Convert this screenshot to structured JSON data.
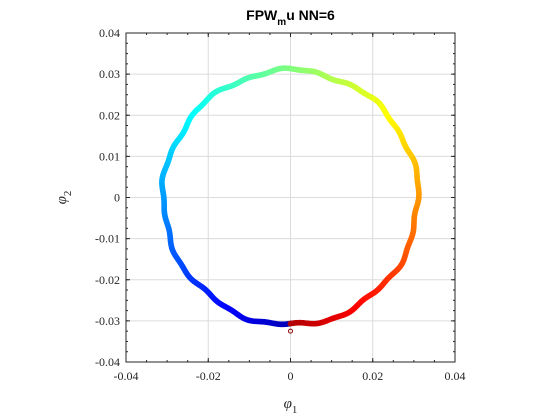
{
  "chart_data": {
    "type": "scatter",
    "title": {
      "main": "FPW",
      "subscript": "m",
      "rest": "u NN=6"
    },
    "xlabel": {
      "symbol": "φ",
      "subscript": "1"
    },
    "ylabel": {
      "symbol": "φ",
      "subscript": "2"
    },
    "xlim": [
      -0.04,
      0.04
    ],
    "ylim": [
      -0.04,
      0.04
    ],
    "xticks": [
      -0.04,
      -0.02,
      0,
      0.02,
      0.04
    ],
    "yticks": [
      -0.04,
      -0.03,
      -0.02,
      -0.01,
      0,
      0.01,
      0.02,
      0.03,
      0.04
    ],
    "xtick_labels": [
      "-0.04",
      "-0.02",
      "0",
      "0.02",
      "0.04"
    ],
    "ytick_labels": [
      "-0.04",
      "-0.03",
      "-0.02",
      "-0.01",
      "0",
      "0.01",
      "0.02",
      "0.03",
      "0.04"
    ],
    "grid": true,
    "colormap": "jet",
    "series": [
      {
        "description": "points along circle of radius ~0.031 centered at origin, colored by angle (jet colormap from blue at bottom-left through cyan, green, yellow, to red at bottom-right)",
        "center": [
          0,
          0
        ],
        "radius": 0.031,
        "start_angle_deg": -90,
        "sweep_deg": -360,
        "count": 420
      }
    ],
    "outlier_points": [
      {
        "x": 0.0,
        "y": -0.0325
      }
    ]
  }
}
